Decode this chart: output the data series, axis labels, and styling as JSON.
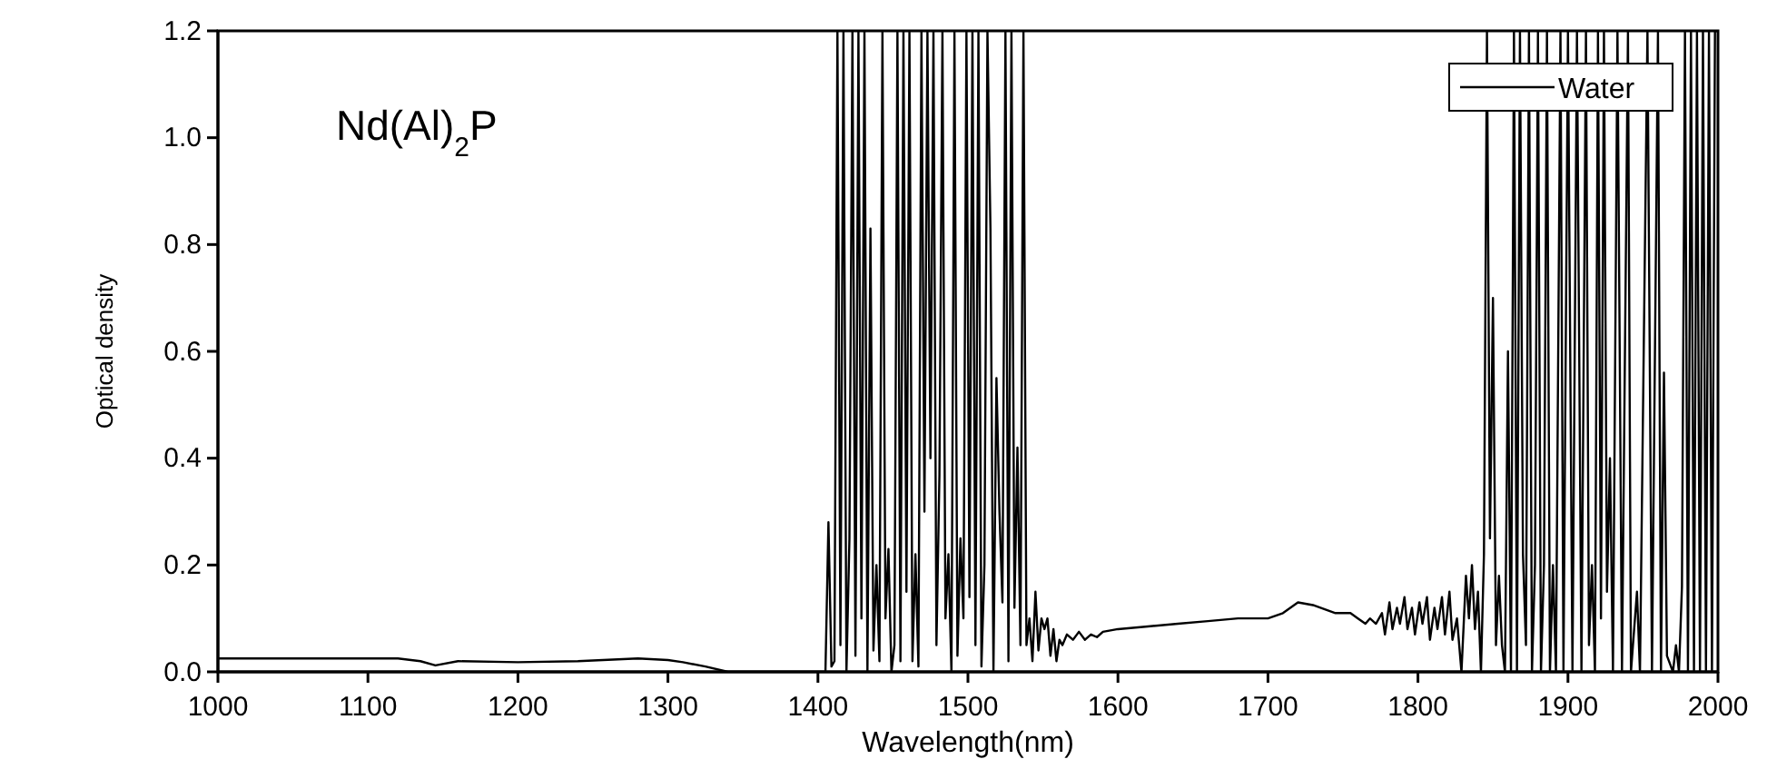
{
  "chart_data": {
    "type": "line",
    "xlabel": "Wavelength(nm)",
    "ylabel": "Optical density",
    "annotations": [
      "Nd(Al)$_{2}$P"
    ],
    "legend": "top right",
    "line_style": "solid",
    "marker": "none",
    "grid": false,
    "xlim": [
      1000,
      2000
    ],
    "xticks": [
      1000,
      1100,
      1200,
      1300,
      1400,
      1500,
      1600,
      1700,
      1800,
      1900,
      2000
    ],
    "ylim": [
      0,
      1.2
    ],
    "yticks": [
      {
        "value": 0,
        "label": "0.0"
      },
      {
        "value": 0.2,
        "label": "0.2"
      },
      {
        "value": 0.4,
        "label": "0.4"
      },
      {
        "value": 0.6,
        "label": "0.6"
      },
      {
        "value": 0.8,
        "label": "0.8"
      },
      {
        "value": 1,
        "label": "1.0"
      },
      {
        "value": 1.2,
        "label": "1.2"
      }
    ],
    "series": [
      {
        "name": "Water",
        "color": "#000000",
        "x": [
          1000,
          1060,
          1120,
          1135,
          1145,
          1160,
          1200,
          1240,
          1280,
          1300,
          1310,
          1325,
          1340,
          1370,
          1405,
          1407,
          1409,
          1411,
          1413,
          1415,
          1417,
          1419,
          1421,
          1423,
          1425,
          1427,
          1429,
          1431,
          1433,
          1435,
          1437,
          1439,
          1441,
          1443,
          1445,
          1447,
          1449,
          1451,
          1453,
          1455,
          1457,
          1459,
          1461,
          1463,
          1465,
          1467,
          1469,
          1471,
          1473,
          1475,
          1477,
          1479,
          1481,
          1483,
          1485,
          1487,
          1489,
          1491,
          1493,
          1495,
          1497,
          1499,
          1501,
          1503,
          1505,
          1507,
          1509,
          1511,
          1513,
          1515,
          1517,
          1519,
          1521,
          1523,
          1525,
          1527,
          1529,
          1531,
          1533,
          1535,
          1537,
          1539,
          1541,
          1543,
          1545,
          1547,
          1549,
          1551,
          1553,
          1555,
          1557,
          1559,
          1561,
          1563,
          1566,
          1570,
          1574,
          1578,
          1582,
          1586,
          1590,
          1600,
          1620,
          1640,
          1660,
          1680,
          1700,
          1710,
          1720,
          1730,
          1745,
          1755,
          1760,
          1765,
          1768,
          1772,
          1776,
          1778,
          1781,
          1783,
          1786,
          1788,
          1791,
          1793,
          1796,
          1798,
          1801,
          1803,
          1806,
          1808,
          1811,
          1813,
          1816,
          1818,
          1821,
          1823,
          1826,
          1829,
          1832,
          1834,
          1836,
          1838,
          1840,
          1842,
          1844,
          1846,
          1848,
          1850,
          1852,
          1854,
          1856,
          1858,
          1860,
          1862,
          1864,
          1866,
          1868,
          1870,
          1872,
          1874,
          1876,
          1878,
          1880,
          1882,
          1884,
          1886,
          1888,
          1890,
          1892,
          1895,
          1897,
          1900,
          1903,
          1906,
          1909,
          1912,
          1914,
          1916,
          1918,
          1920,
          1922,
          1924,
          1926,
          1928,
          1930,
          1933,
          1936,
          1940,
          1942,
          1946,
          1948,
          1953,
          1956,
          1960,
          1962,
          1964,
          1966,
          1970,
          1972,
          1974,
          1976,
          1978,
          1980,
          1982,
          1984,
          1986,
          1988,
          1990,
          1992,
          1994,
          1996,
          1998,
          2000
        ],
        "values": [
          0.025,
          0.025,
          0.025,
          0.02,
          0.012,
          0.02,
          0.018,
          0.02,
          0.025,
          0.022,
          0.018,
          0.01,
          0,
          0,
          0,
          0.28,
          0.01,
          0.02,
          1.2,
          0.05,
          1.2,
          0,
          0.25,
          1.2,
          0.03,
          1.2,
          0.1,
          1.2,
          0,
          0.83,
          0.04,
          0.2,
          0.02,
          1.2,
          0.1,
          0.23,
          0,
          0.05,
          1.2,
          0.02,
          1.2,
          0.15,
          1.2,
          0.02,
          0.22,
          0.01,
          1.2,
          0.3,
          1.2,
          0.4,
          1.2,
          0.05,
          0.37,
          1.2,
          0.1,
          0.22,
          0,
          1.2,
          0.03,
          0.25,
          0.1,
          1.2,
          0.14,
          1.2,
          0.05,
          1.2,
          0.01,
          0.2,
          1.2,
          0.83,
          0,
          0.55,
          0.3,
          0.13,
          1.2,
          0.02,
          1.2,
          0.12,
          0.42,
          0.05,
          1.2,
          0.05,
          0.1,
          0.02,
          0.15,
          0.04,
          0.1,
          0.08,
          0.1,
          0.03,
          0.08,
          0.02,
          0.06,
          0.05,
          0.07,
          0.06,
          0.075,
          0.06,
          0.07,
          0.065,
          0.075,
          0.08,
          0.085,
          0.09,
          0.095,
          0.1,
          0.1,
          0.11,
          0.13,
          0.125,
          0.11,
          0.11,
          0.1,
          0.09,
          0.1,
          0.09,
          0.11,
          0.07,
          0.13,
          0.08,
          0.12,
          0.09,
          0.14,
          0.08,
          0.12,
          0.07,
          0.13,
          0.09,
          0.14,
          0.06,
          0.12,
          0.08,
          0.14,
          0.07,
          0.15,
          0.06,
          0.1,
          0,
          0.18,
          0.1,
          0.2,
          0.08,
          0.15,
          0,
          0.22,
          1.2,
          0.25,
          0.7,
          0.05,
          0.18,
          0.05,
          0,
          0.6,
          0,
          1.2,
          0,
          1.2,
          0.22,
          0.05,
          1.2,
          0,
          0.2,
          1.2,
          0,
          0.2,
          1.2,
          0,
          0.2,
          0,
          1.2,
          0,
          1.2,
          0,
          1.2,
          0,
          1.2,
          0.05,
          0.2,
          0,
          1.2,
          0.1,
          1.2,
          0.15,
          0.4,
          0,
          1.2,
          0,
          1.2,
          0,
          0.15,
          0,
          1.2,
          0,
          1.2,
          0,
          0.56,
          0.03,
          0,
          0.05,
          0,
          0.16,
          1.2,
          0,
          1.2,
          0,
          1.2,
          0,
          1.2,
          0,
          1.2,
          0,
          1.2,
          1.2
        ]
      }
    ]
  }
}
